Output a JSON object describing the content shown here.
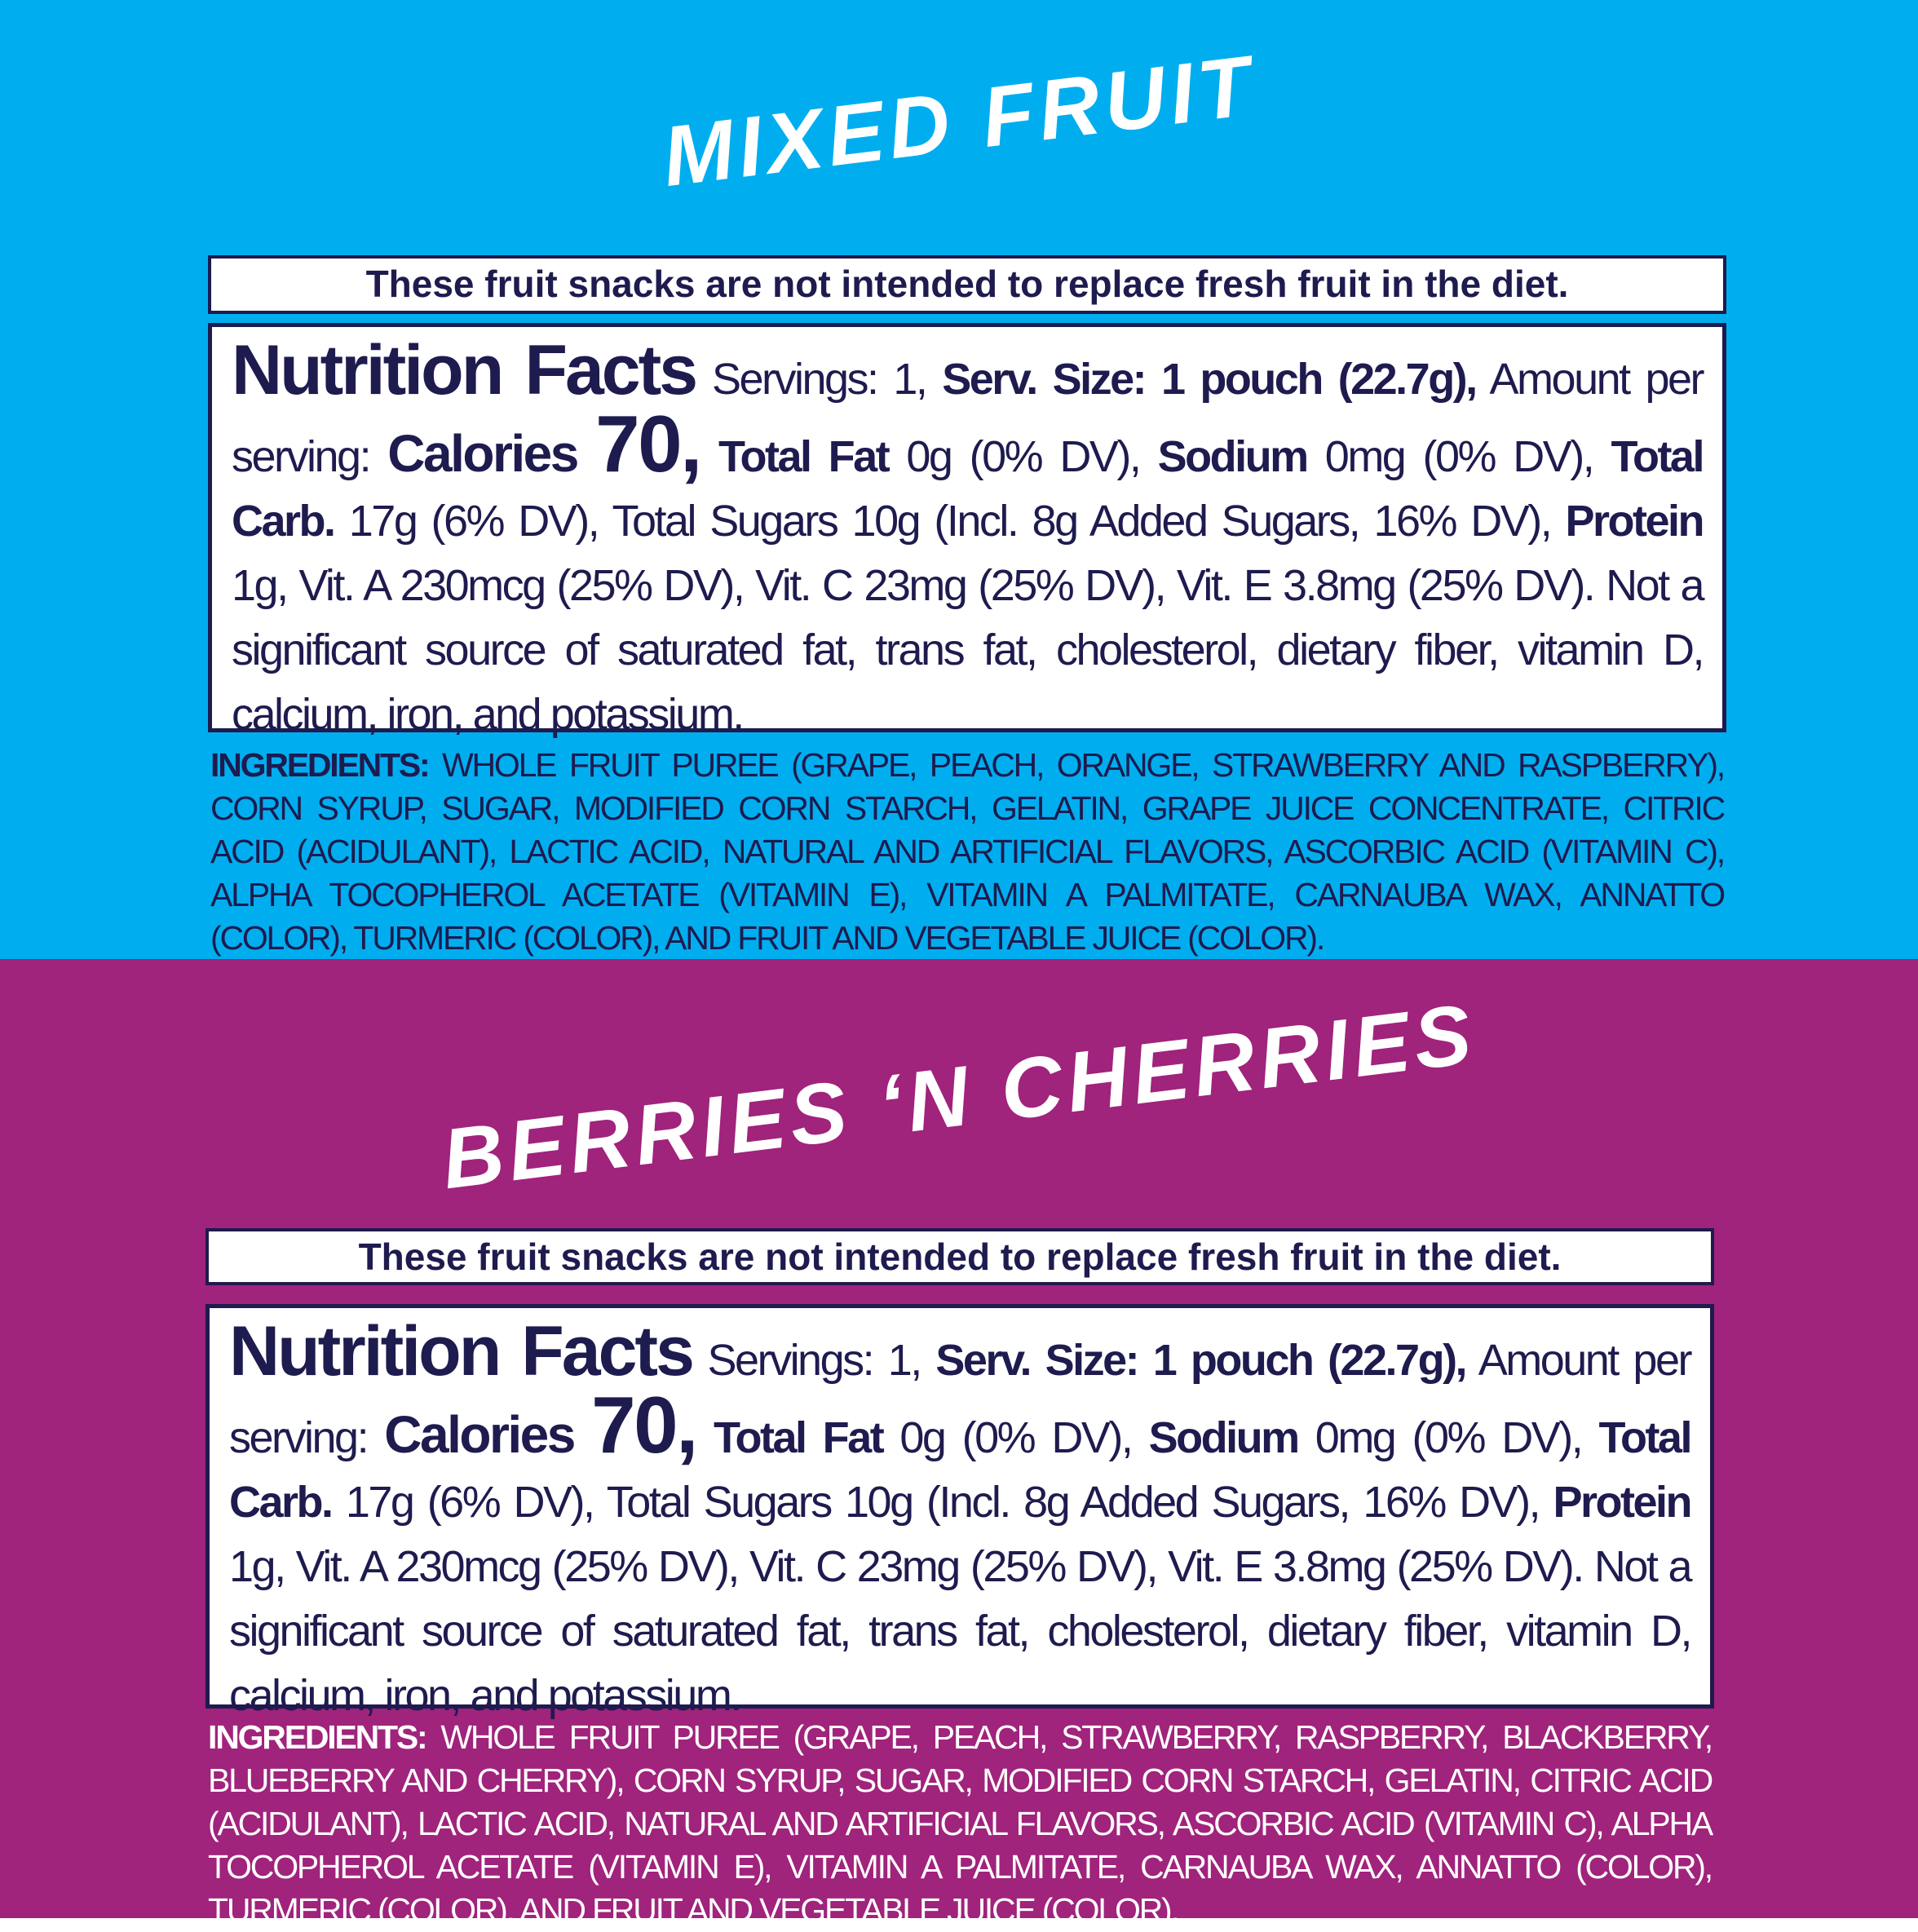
{
  "panels": [
    {
      "title": "MIXED FRUIT",
      "disclaimer": "These fruit snacks are not intended to replace fresh fruit in the diet.",
      "nutrition": {
        "heading": "Nutrition Facts",
        "servings": "Servings: 1,",
        "serving_size": "Serv. Size: 1 pouch (22.7g),",
        "amount_per_serving": "Amount per serving:",
        "calories_label": "Calories",
        "calories_value": "70,",
        "fat_label": "Total Fat",
        "fat_amount": "0g (0% DV),",
        "sodium_label": "Sodium",
        "sodium_amount": "0mg (0% DV),",
        "carb_label": "Total Carb.",
        "carb_amount": "17g (6% DV), Total Sugars 10g (Incl. 8g Added Sugars, 16% DV),",
        "protein_label": "Protein",
        "protein_amount": "1g, Vit. A 230mcg (25% DV), Vit. C 23mg (25% DV), Vit. E 3.8mg (25% DV). Not a significant source of saturated fat, trans fat, cholesterol, dietary fiber, vitamin D, calcium, iron, and potassium."
      },
      "ingredients": {
        "label": "INGREDIENTS:",
        "text": "WHOLE FRUIT PUREE (GRAPE, PEACH, ORANGE, STRAWBERRY AND RASPBERRY), CORN SYRUP, SUGAR, MODIFIED CORN STARCH, GELATIN, GRAPE JUICE CONCENTRATE, CITRIC ACID (ACIDULANT), LACTIC ACID, NATURAL AND ARTIFICIAL FLAVORS, ASCORBIC ACID (VITAMIN C), ALPHA TOCOPHEROL ACETATE (VITAMIN E), VITAMIN A PALMITATE, CARNAUBA WAX, ANNATTO (COLOR), TURMERIC (COLOR), AND FRUIT AND VEGETABLE JUICE (COLOR)."
      }
    },
    {
      "title": "BERRIES ‘N CHERRIES",
      "disclaimer": "These fruit snacks are not intended to replace fresh fruit in the diet.",
      "nutrition": {
        "heading": "Nutrition Facts",
        "servings": "Servings: 1,",
        "serving_size": "Serv. Size: 1 pouch (22.7g),",
        "amount_per_serving": "Amount per serving:",
        "calories_label": "Calories",
        "calories_value": "70,",
        "fat_label": "Total Fat",
        "fat_amount": "0g (0% DV),",
        "sodium_label": "Sodium",
        "sodium_amount": "0mg (0% DV),",
        "carb_label": "Total Carb.",
        "carb_amount": "17g (6% DV), Total Sugars 10g (Incl. 8g Added Sugars, 16% DV),",
        "protein_label": "Protein",
        "protein_amount": "1g, Vit. A 230mcg (25% DV), Vit. C 23mg (25% DV), Vit. E 3.8mg (25% DV). Not a significant source of saturated fat, trans fat, cholesterol, dietary fiber, vitamin D, calcium, iron, and potassium."
      },
      "ingredients": {
        "label": "INGREDIENTS:",
        "text": "WHOLE FRUIT PUREE (GRAPE, PEACH, STRAWBERRY, RASPBERRY, BLACKBERRY, BLUEBERRY AND CHERRY), CORN SYRUP, SUGAR, MODIFIED CORN STARCH, GELATIN, CITRIC ACID (ACIDULANT), LACTIC ACID, NATURAL AND ARTIFICIAL FLAVORS, ASCORBIC ACID (VITAMIN C), ALPHA TOCOPHEROL ACETATE (VITAMIN E), VITAMIN A PALMITATE, CARNAUBA WAX, ANNATTO (COLOR), TURMERIC (COLOR), AND FRUIT AND VEGETABLE JUICE (COLOR)."
      }
    }
  ]
}
